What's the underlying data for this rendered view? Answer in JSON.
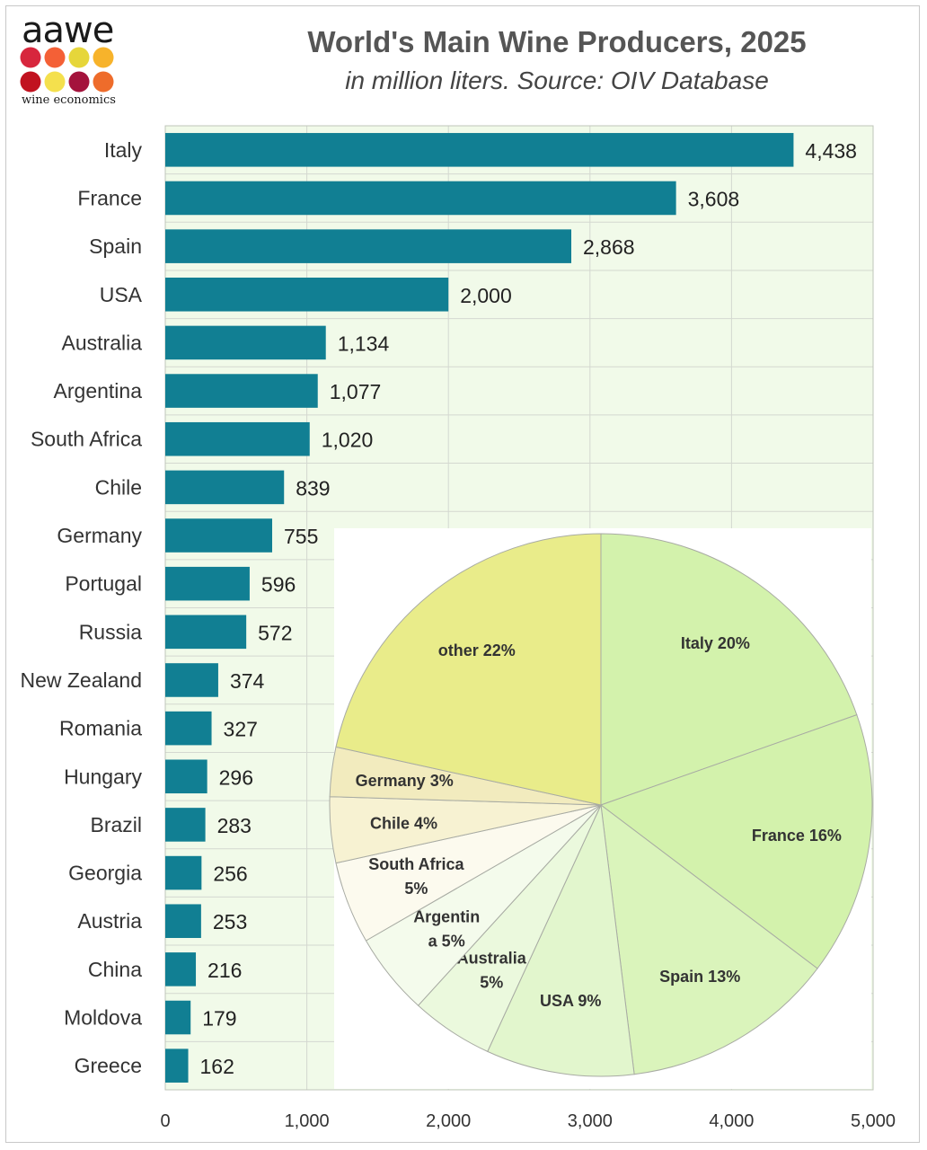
{
  "logo": {
    "text": "aawe",
    "subtext": "wine economics",
    "dot_colors": [
      "#d7263d",
      "#f46036",
      "#e6d63a",
      "#f7b32b",
      "#c1121f",
      "#f4e04d",
      "#a4133c",
      "#ee6c2b"
    ]
  },
  "header": {
    "title": "World's Main Wine Producers, 2025",
    "subtitle": "in million liters. Source: OIV Database"
  },
  "chart_data": [
    {
      "type": "bar",
      "orientation": "horizontal",
      "categories": [
        "Italy",
        "France",
        "Spain",
        "USA",
        "Australia",
        "Argentina",
        "South Africa",
        "Chile",
        "Germany",
        "Portugal",
        "Russia",
        "New Zealand",
        "Romania",
        "Hungary",
        "Brazil",
        "Georgia",
        "Austria",
        "China",
        "Moldova",
        "Greece"
      ],
      "values": [
        4438,
        3608,
        2868,
        2000,
        1134,
        1077,
        1020,
        839,
        755,
        596,
        572,
        374,
        327,
        296,
        283,
        256,
        253,
        216,
        179,
        162
      ],
      "data_labels": [
        "4,438",
        "3,608",
        "2,868",
        "2,000",
        "1,134",
        "1,077",
        "1,020",
        "839",
        "755",
        "596",
        "572",
        "374",
        "327",
        "296",
        "283",
        "256",
        "253",
        "216",
        "179",
        "162"
      ],
      "xlim": [
        0,
        5000
      ],
      "x_ticks": [
        0,
        1000,
        2000,
        3000,
        4000,
        5000
      ],
      "x_tick_labels": [
        "0",
        "1,000",
        "2,000",
        "3,000",
        "4,000",
        "5,000"
      ],
      "grid": true,
      "bar_color": "#117f93",
      "plot_background": "#f1fae9"
    },
    {
      "type": "pie",
      "slices": [
        {
          "label_lines": [
            "Italy 20%"
          ],
          "value": 20,
          "color": "#d3f2ac"
        },
        {
          "label_lines": [
            "France 16%"
          ],
          "value": 16,
          "color": "#d3f2ac"
        },
        {
          "label_lines": [
            "Spain 13%"
          ],
          "value": 13,
          "color": "#daf4bb"
        },
        {
          "label_lines": [
            "USA 9%"
          ],
          "value": 9,
          "color": "#e2f6cd"
        },
        {
          "label_lines": [
            "Australia",
            "5%"
          ],
          "value": 5,
          "color": "#ebf9dd"
        },
        {
          "label_lines": [
            "Argentin",
            "a 5%"
          ],
          "value": 5,
          "color": "#f4fbec"
        },
        {
          "label_lines": [
            "South Africa",
            "5%"
          ],
          "value": 5,
          "color": "#fcfaee"
        },
        {
          "label_lines": [
            "Chile 4%"
          ],
          "value": 4,
          "color": "#f7f2d2"
        },
        {
          "label_lines": [
            "Germany 3%"
          ],
          "value": 3,
          "color": "#f2ebbe"
        },
        {
          "label_lines": [
            "other 22%"
          ],
          "value": 22,
          "color": "#e9ec8a"
        }
      ]
    }
  ]
}
